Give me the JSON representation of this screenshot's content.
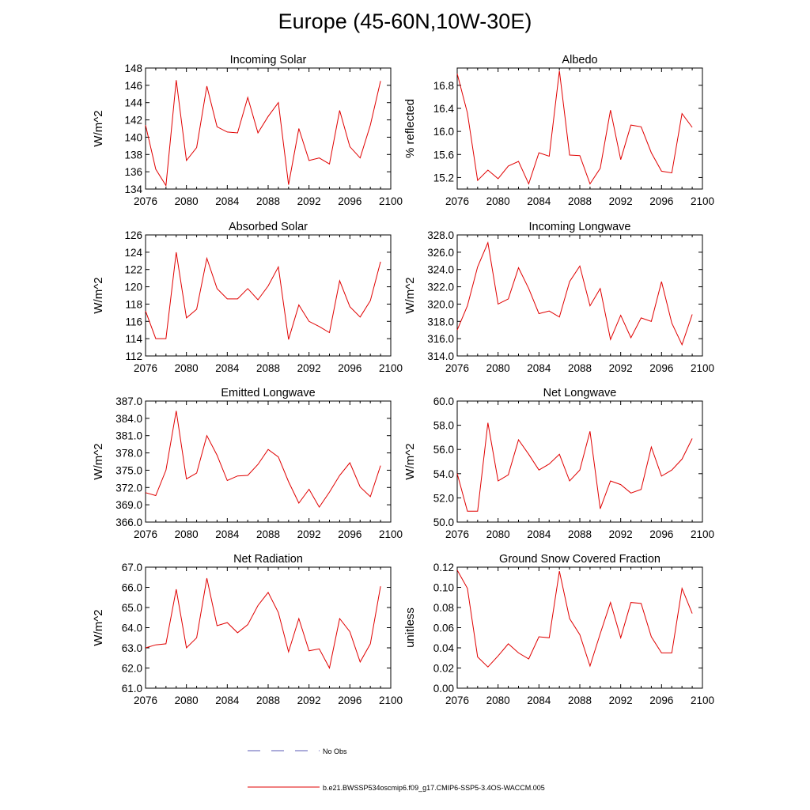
{
  "page": {
    "title": "Europe (45-60N,10W-30E)"
  },
  "legend": {
    "items": [
      {
        "label": "No Obs",
        "color": "#5a5ab4",
        "style": "dashed"
      },
      {
        "label": "b.e21.BWSSP534oscmip6.f09_g17.CMIP6-SSP5-3.4OS-WACCM.005",
        "color": "#e00000",
        "style": "solid"
      }
    ]
  },
  "chart_data": [
    {
      "type": "line",
      "title": "Incoming Solar",
      "ylabel": "W/m^2",
      "xlim": [
        2076,
        2100
      ],
      "xticks": [
        "2076",
        "2080",
        "2084",
        "2088",
        "2092",
        "2096",
        "2100"
      ],
      "ylim": [
        134,
        148
      ],
      "yticks": [
        "134",
        "136",
        "138",
        "140",
        "142",
        "144",
        "146",
        "148"
      ],
      "series": [
        {
          "name": "b.e21.BWSSP534oscmip6.f09_g17.CMIP6-SSP5-3.4OS-WACCM.005",
          "color": "#e00000",
          "x": [
            2076,
            2077,
            2078,
            2079,
            2080,
            2081,
            2082,
            2083,
            2084,
            2085,
            2086,
            2087,
            2088,
            2089,
            2090,
            2091,
            2092,
            2093,
            2094,
            2095,
            2096,
            2097,
            2098,
            2099
          ],
          "values": [
            141.4,
            136.3,
            134.4,
            146.6,
            137.3,
            138.8,
            145.9,
            141.2,
            140.6,
            140.5,
            144.6,
            140.5,
            142.4,
            144.0,
            134.5,
            141.0,
            137.3,
            137.6,
            136.9,
            143.1,
            138.9,
            137.6,
            141.4,
            146.5
          ]
        }
      ]
    },
    {
      "type": "line",
      "title": "Albedo",
      "ylabel": "% reflected",
      "xlim": [
        2076,
        2100
      ],
      "xticks": [
        "2076",
        "2080",
        "2084",
        "2088",
        "2092",
        "2096",
        "2100"
      ],
      "ylim": [
        15.0,
        17.1
      ],
      "yticks": [
        "15.2",
        "15.6",
        "16.0",
        "16.4",
        "16.8"
      ],
      "series": [
        {
          "name": "b.e21.BWSSP534oscmip6.f09_g17.CMIP6-SSP5-3.4OS-WACCM.005",
          "color": "#e00000",
          "x": [
            2076,
            2077,
            2078,
            2079,
            2080,
            2081,
            2082,
            2083,
            2084,
            2085,
            2086,
            2087,
            2088,
            2089,
            2090,
            2091,
            2092,
            2093,
            2094,
            2095,
            2096,
            2097,
            2098,
            2099
          ],
          "values": [
            17.0,
            16.32,
            15.15,
            15.33,
            15.18,
            15.4,
            15.48,
            15.09,
            15.63,
            15.57,
            17.05,
            15.59,
            15.58,
            15.09,
            15.36,
            16.37,
            15.51,
            16.11,
            16.08,
            15.63,
            15.31,
            15.28,
            16.31,
            16.07
          ]
        }
      ]
    },
    {
      "type": "line",
      "title": "Absorbed Solar",
      "ylabel": "W/m^2",
      "xlim": [
        2076,
        2100
      ],
      "xticks": [
        "2076",
        "2080",
        "2084",
        "2088",
        "2092",
        "2096",
        "2100"
      ],
      "ylim": [
        112,
        126
      ],
      "yticks": [
        "112",
        "114",
        "116",
        "118",
        "120",
        "122",
        "124",
        "126"
      ],
      "series": [
        {
          "name": "b.e21.BWSSP534oscmip6.f09_g17.CMIP6-SSP5-3.4OS-WACCM.005",
          "color": "#e00000",
          "x": [
            2076,
            2077,
            2078,
            2079,
            2080,
            2081,
            2082,
            2083,
            2084,
            2085,
            2086,
            2087,
            2088,
            2089,
            2090,
            2091,
            2092,
            2093,
            2094,
            2095,
            2096,
            2097,
            2098,
            2099
          ],
          "values": [
            117.2,
            114.0,
            114.0,
            124.0,
            116.4,
            117.4,
            123.3,
            119.8,
            118.6,
            118.6,
            119.8,
            118.5,
            120.1,
            122.3,
            113.9,
            117.9,
            116.0,
            115.4,
            114.7,
            120.7,
            117.7,
            116.5,
            118.4,
            122.9
          ]
        }
      ]
    },
    {
      "type": "line",
      "title": "Incoming Longwave",
      "ylabel": "W/m^2",
      "xlim": [
        2076,
        2100
      ],
      "xticks": [
        "2076",
        "2080",
        "2084",
        "2088",
        "2092",
        "2096",
        "2100"
      ],
      "ylim": [
        314,
        328
      ],
      "yticks": [
        "314.0",
        "316.0",
        "318.0",
        "320.0",
        "322.0",
        "324.0",
        "326.0",
        "328.0"
      ],
      "series": [
        {
          "name": "b.e21.BWSSP534oscmip6.f09_g17.CMIP6-SSP5-3.4OS-WACCM.005",
          "color": "#e00000",
          "x": [
            2076,
            2077,
            2078,
            2079,
            2080,
            2081,
            2082,
            2083,
            2084,
            2085,
            2086,
            2087,
            2088,
            2089,
            2090,
            2091,
            2092,
            2093,
            2094,
            2095,
            2096,
            2097,
            2098,
            2099
          ],
          "values": [
            317.0,
            319.8,
            324.3,
            327.1,
            320.0,
            320.6,
            324.2,
            321.8,
            318.9,
            319.2,
            318.5,
            322.6,
            324.4,
            319.8,
            321.8,
            315.9,
            318.7,
            316.1,
            318.4,
            318.0,
            322.6,
            317.8,
            315.3,
            318.8
          ]
        }
      ]
    },
    {
      "type": "line",
      "title": "Emitted Longwave",
      "ylabel": "W/m^2",
      "xlim": [
        2076,
        2100
      ],
      "xticks": [
        "2076",
        "2080",
        "2084",
        "2088",
        "2092",
        "2096",
        "2100"
      ],
      "ylim": [
        366,
        387
      ],
      "yticks": [
        "366.0",
        "369.0",
        "372.0",
        "375.0",
        "378.0",
        "381.0",
        "384.0",
        "387.0"
      ],
      "series": [
        {
          "name": "b.e21.BWSSP534oscmip6.f09_g17.CMIP6-SSP5-3.4OS-WACCM.005",
          "color": "#e00000",
          "x": [
            2076,
            2077,
            2078,
            2079,
            2080,
            2081,
            2082,
            2083,
            2084,
            2085,
            2086,
            2087,
            2088,
            2089,
            2090,
            2091,
            2092,
            2093,
            2094,
            2095,
            2096,
            2097,
            2098,
            2099
          ],
          "values": [
            371.1,
            370.6,
            375.0,
            385.3,
            373.5,
            374.5,
            381.0,
            377.6,
            373.2,
            374.0,
            374.1,
            376.0,
            378.6,
            377.3,
            373.0,
            369.3,
            371.7,
            368.6,
            371.2,
            374.1,
            376.3,
            372.1,
            370.4,
            375.8
          ]
        }
      ]
    },
    {
      "type": "line",
      "title": "Net Longwave",
      "ylabel": "W/m^2",
      "xlim": [
        2076,
        2100
      ],
      "xticks": [
        "2076",
        "2080",
        "2084",
        "2088",
        "2092",
        "2096",
        "2100"
      ],
      "ylim": [
        50,
        60
      ],
      "yticks": [
        "50.0",
        "52.0",
        "54.0",
        "56.0",
        "58.0",
        "60.0"
      ],
      "series": [
        {
          "name": "b.e21.BWSSP534oscmip6.f09_g17.CMIP6-SSP5-3.4OS-WACCM.005",
          "color": "#e00000",
          "x": [
            2076,
            2077,
            2078,
            2079,
            2080,
            2081,
            2082,
            2083,
            2084,
            2085,
            2086,
            2087,
            2088,
            2089,
            2090,
            2091,
            2092,
            2093,
            2094,
            2095,
            2096,
            2097,
            2098,
            2099
          ],
          "values": [
            54.0,
            50.9,
            50.9,
            58.2,
            53.4,
            53.9,
            56.8,
            55.6,
            54.3,
            54.8,
            55.6,
            53.4,
            54.3,
            57.5,
            51.1,
            53.4,
            53.1,
            52.4,
            52.7,
            56.2,
            53.8,
            54.3,
            55.2,
            56.9
          ]
        }
      ]
    },
    {
      "type": "line",
      "title": "Net Radiation",
      "ylabel": "W/m^2",
      "xlim": [
        2076,
        2100
      ],
      "xticks": [
        "2076",
        "2080",
        "2084",
        "2088",
        "2092",
        "2096",
        "2100"
      ],
      "ylim": [
        61,
        67
      ],
      "yticks": [
        "61.0",
        "62.0",
        "63.0",
        "64.0",
        "65.0",
        "66.0",
        "67.0"
      ],
      "series": [
        {
          "name": "b.e21.BWSSP534oscmip6.f09_g17.CMIP6-SSP5-3.4OS-WACCM.005",
          "color": "#e00000",
          "x": [
            2076,
            2077,
            2078,
            2079,
            2080,
            2081,
            2082,
            2083,
            2084,
            2085,
            2086,
            2087,
            2088,
            2089,
            2090,
            2091,
            2092,
            2093,
            2094,
            2095,
            2096,
            2097,
            2098,
            2099
          ],
          "values": [
            63.0,
            63.15,
            63.2,
            65.9,
            63.0,
            63.5,
            66.45,
            64.1,
            64.25,
            63.75,
            64.15,
            65.1,
            65.75,
            64.75,
            62.8,
            64.45,
            62.85,
            62.95,
            62.0,
            64.45,
            63.8,
            62.3,
            63.2,
            66.05
          ]
        }
      ]
    },
    {
      "type": "line",
      "title": "Ground Snow Covered Fraction",
      "ylabel": "unitless",
      "xlim": [
        2076,
        2100
      ],
      "xticks": [
        "2076",
        "2080",
        "2084",
        "2088",
        "2092",
        "2096",
        "2100"
      ],
      "ylim": [
        0.0,
        0.12
      ],
      "yticks": [
        "0.00",
        "0.02",
        "0.04",
        "0.06",
        "0.08",
        "0.10",
        "0.12"
      ],
      "series": [
        {
          "name": "b.e21.BWSSP534oscmip6.f09_g17.CMIP6-SSP5-3.4OS-WACCM.005",
          "color": "#e00000",
          "x": [
            2076,
            2077,
            2078,
            2079,
            2080,
            2081,
            2082,
            2083,
            2084,
            2085,
            2086,
            2087,
            2088,
            2089,
            2090,
            2091,
            2092,
            2093,
            2094,
            2095,
            2096,
            2097,
            2098,
            2099
          ],
          "values": [
            0.117,
            0.099,
            0.031,
            0.021,
            0.032,
            0.044,
            0.035,
            0.029,
            0.051,
            0.05,
            0.116,
            0.069,
            0.053,
            0.022,
            0.054,
            0.085,
            0.05,
            0.085,
            0.084,
            0.051,
            0.035,
            0.035,
            0.099,
            0.074
          ]
        }
      ]
    }
  ]
}
